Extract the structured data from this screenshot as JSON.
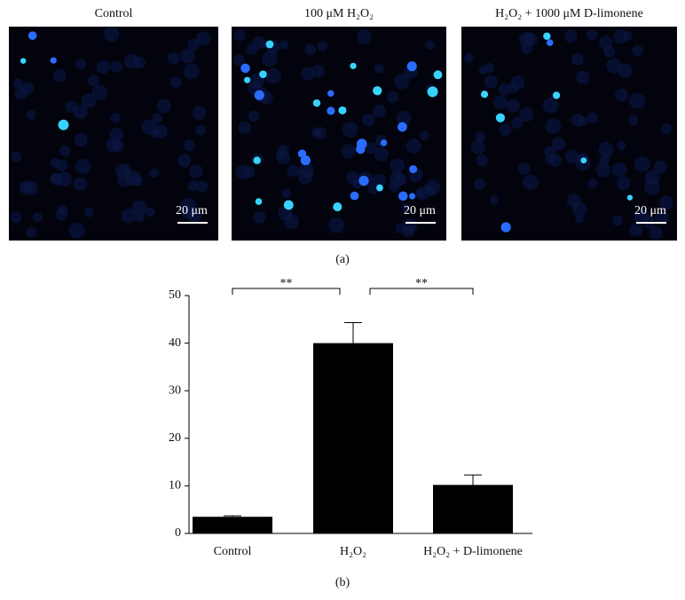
{
  "panel_a": {
    "label": "(a)",
    "images": [
      {
        "title": "Control",
        "scale_bar": "20 μm"
      },
      {
        "title": "100 μM H₂O₂",
        "scale_bar": "20 μm"
      },
      {
        "title": "H₂O₂ + 1000 μM D-limonene",
        "scale_bar": "20 μm"
      }
    ]
  },
  "panel_b": {
    "label": "(b)"
  },
  "chart_data": {
    "type": "bar",
    "categories": [
      "Control",
      "H₂O₂",
      "H₂O₂ + D-limonene"
    ],
    "values": [
      3.5,
      40,
      10.2
    ],
    "errors": [
      0.2,
      4.3,
      2.1
    ],
    "color": "#000000",
    "ylim": [
      0,
      50
    ],
    "yticks": [
      0,
      10,
      20,
      30,
      40,
      50
    ],
    "annotations": [
      "**",
      "**"
    ]
  }
}
